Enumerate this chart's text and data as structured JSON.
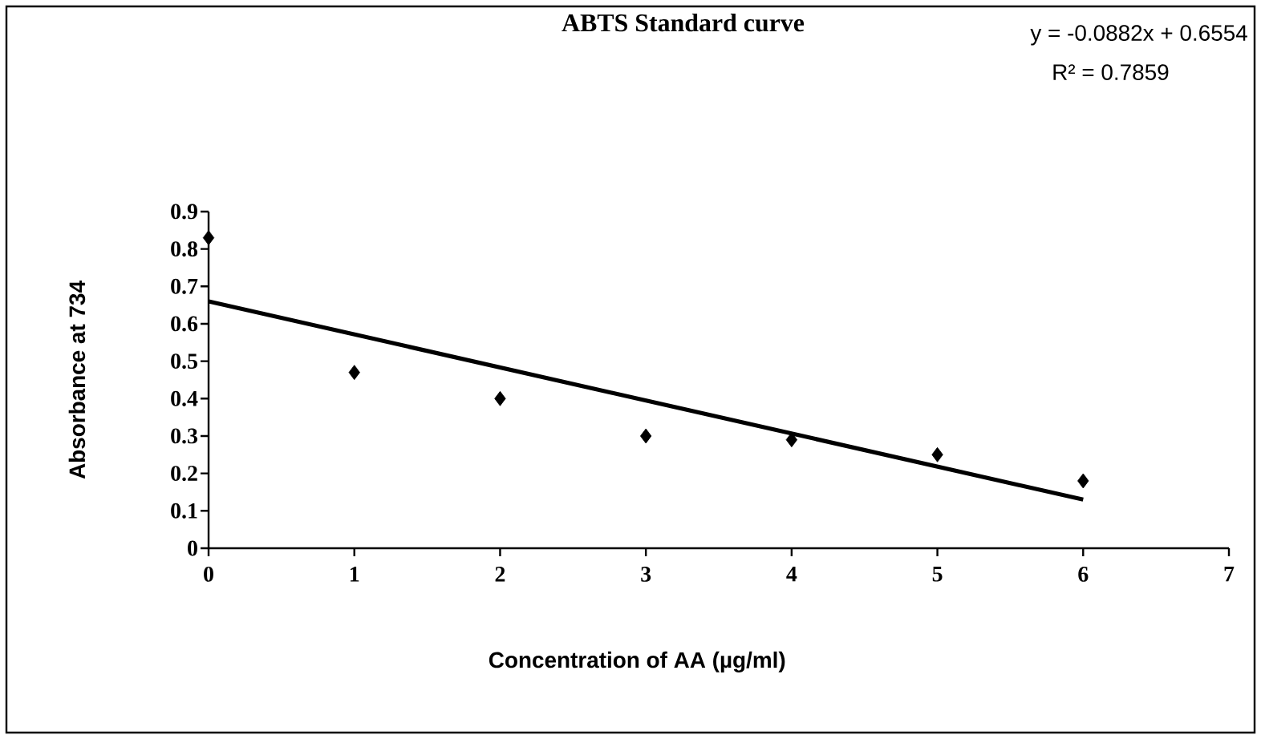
{
  "chart_data": {
    "type": "scatter",
    "title": "ABTS Standard curve",
    "xlabel": "Concentration of AA (µg/ml)",
    "ylabel": "Absorbance at 734",
    "annotations": [
      "y = -0.0882x + 0.6554",
      "R² = 0.7859"
    ],
    "x": [
      0,
      1,
      2,
      3,
      4,
      5,
      6
    ],
    "series": [
      {
        "color": "#000000",
        "marker": "diamond",
        "values": [
          0.83,
          0.47,
          0.4,
          0.3,
          0.29,
          0.25,
          0.18
        ]
      },
      {
        "type": "line",
        "color": "#000000",
        "marker": "none",
        "x": [
          0,
          6
        ],
        "values": [
          0.66,
          0.13
        ]
      }
    ],
    "xlim": [
      0,
      7
    ],
    "xticks": [
      0,
      1,
      2,
      3,
      4,
      5,
      6,
      7
    ],
    "ylim": [
      0,
      0.9
    ],
    "yticks": [
      0,
      0.1,
      0.2,
      0.3,
      0.4,
      0.5,
      0.6,
      0.7,
      0.8,
      0.9
    ]
  }
}
